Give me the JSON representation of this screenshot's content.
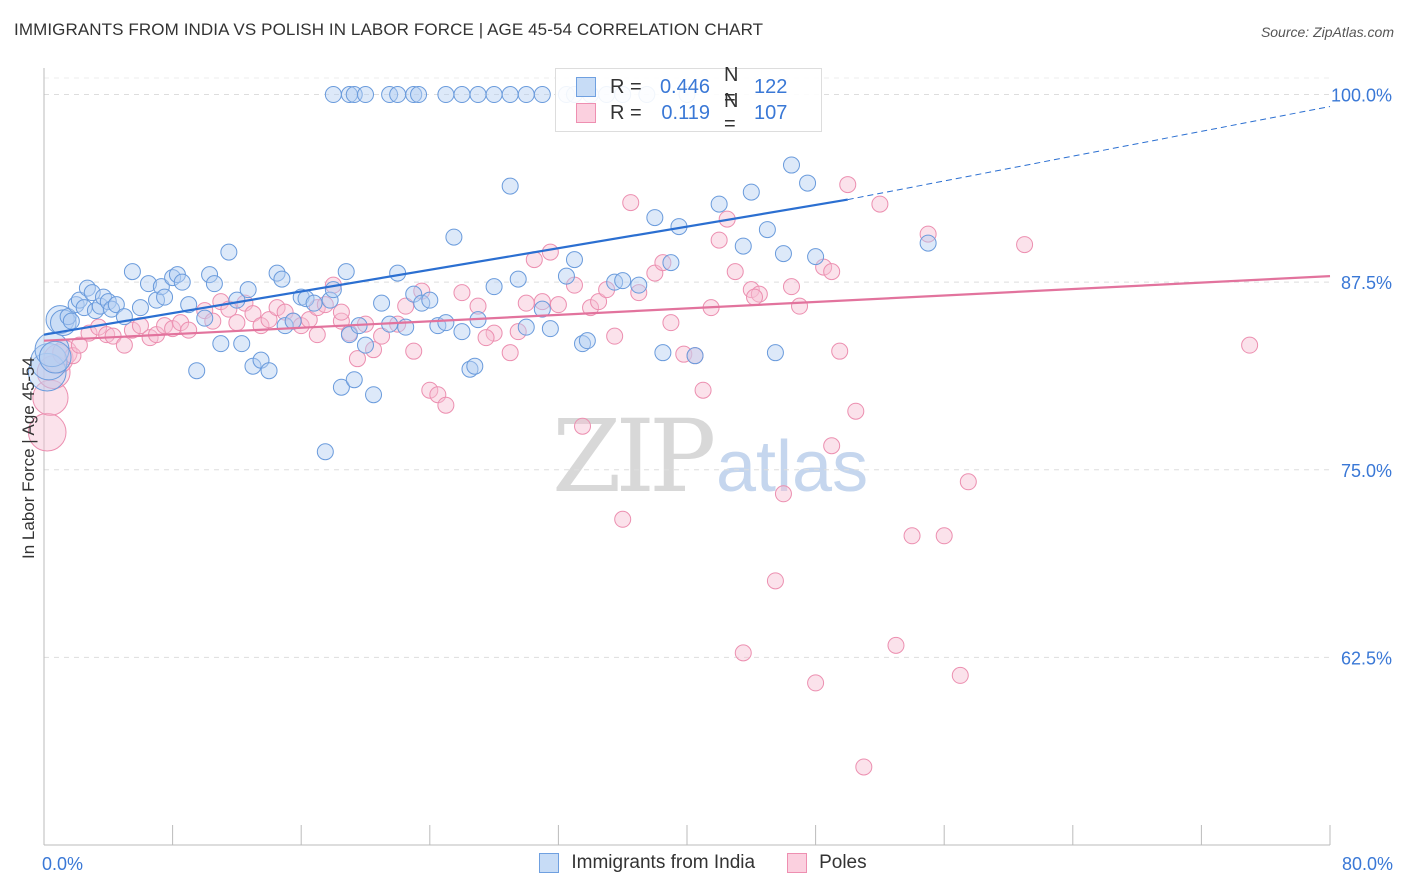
{
  "header": {
    "title": "IMMIGRANTS FROM INDIA VS POLISH IN LABOR FORCE | AGE 45-54 CORRELATION CHART",
    "source": "Source: ZipAtlas.com"
  },
  "watermark": {
    "zip": "ZIP",
    "atlas": "atlas"
  },
  "legend_top": {
    "rows": [
      {
        "r_label": "R =",
        "r_value": "0.446",
        "n_label": "N =",
        "n_value": "122",
        "color": "#6fa0e0"
      },
      {
        "r_label": "R =",
        "r_value": "0.119",
        "n_label": "N =",
        "n_value": "107",
        "color": "#ee8fb1"
      }
    ]
  },
  "legend_bottom": {
    "items": [
      {
        "label": "Immigrants from India",
        "color": "#6fa0e0"
      },
      {
        "label": "Poles",
        "color": "#ee8fb1"
      }
    ]
  },
  "chart_data": {
    "type": "scatter",
    "title": "IMMIGRANTS FROM INDIA VS POLISH IN LABOR FORCE | AGE 45-54 CORRELATION CHART",
    "xlabel": "",
    "ylabel": "In Labor Force | Age 45-54",
    "xlim": [
      0,
      80
    ],
    "ylim": [
      50,
      101.5
    ],
    "x_tick_labels": [
      "0.0%",
      "80.0%"
    ],
    "y_ticks": [
      62.5,
      75.0,
      87.5,
      100.0
    ],
    "y_tick_labels": [
      "62.5%",
      "75.0%",
      "87.5%",
      "100.0%"
    ],
    "grid": "horizontal dashed",
    "series": [
      {
        "name": "Immigrants from India",
        "color": "#6fa0e0",
        "trend": {
          "x": [
            0,
            50
          ],
          "y": [
            84.0,
            93.0
          ],
          "dashed_to_x": 80,
          "dashed_y": 99.2
        },
        "points": [
          [
            0.2,
            81.5
          ],
          [
            0.3,
            82.2
          ],
          [
            0.5,
            83.0
          ],
          [
            0.7,
            82.5
          ],
          [
            1.0,
            85.0
          ],
          [
            1.2,
            84.8
          ],
          [
            1.5,
            85.2
          ],
          [
            1.7,
            84.9
          ],
          [
            2.0,
            86.0
          ],
          [
            2.2,
            86.3
          ],
          [
            2.5,
            85.8
          ],
          [
            2.7,
            87.1
          ],
          [
            3.0,
            86.8
          ],
          [
            3.2,
            85.6
          ],
          [
            3.5,
            85.9
          ],
          [
            3.7,
            86.5
          ],
          [
            4.0,
            86.2
          ],
          [
            4.2,
            85.7
          ],
          [
            4.5,
            86.0
          ],
          [
            5.0,
            85.2
          ],
          [
            5.5,
            88.2
          ],
          [
            6.0,
            85.8
          ],
          [
            6.5,
            87.4
          ],
          [
            7.0,
            86.3
          ],
          [
            7.3,
            87.2
          ],
          [
            7.5,
            86.5
          ],
          [
            8.0,
            87.8
          ],
          [
            8.3,
            88.0
          ],
          [
            8.6,
            87.5
          ],
          [
            9.0,
            86.0
          ],
          [
            9.5,
            81.6
          ],
          [
            10.0,
            85.1
          ],
          [
            10.3,
            88.0
          ],
          [
            10.6,
            87.4
          ],
          [
            11.0,
            83.4
          ],
          [
            11.5,
            89.5
          ],
          [
            12.0,
            86.3
          ],
          [
            12.3,
            83.4
          ],
          [
            12.7,
            87.0
          ],
          [
            13.0,
            81.9
          ],
          [
            13.5,
            82.3
          ],
          [
            14.0,
            81.6
          ],
          [
            14.5,
            88.1
          ],
          [
            14.8,
            87.7
          ],
          [
            15.0,
            84.6
          ],
          [
            15.5,
            84.9
          ],
          [
            16.0,
            86.5
          ],
          [
            16.3,
            86.4
          ],
          [
            16.8,
            86.1
          ],
          [
            17.5,
            76.2
          ],
          [
            17.8,
            86.3
          ],
          [
            18.0,
            87.0
          ],
          [
            18.5,
            80.5
          ],
          [
            18.8,
            88.2
          ],
          [
            19.0,
            84.0
          ],
          [
            19.3,
            81.0
          ],
          [
            19.6,
            84.6
          ],
          [
            20.0,
            83.3
          ],
          [
            20.5,
            80.0
          ],
          [
            21.0,
            86.1
          ],
          [
            21.5,
            84.7
          ],
          [
            22.0,
            88.1
          ],
          [
            22.5,
            84.5
          ],
          [
            23.0,
            86.7
          ],
          [
            23.5,
            86.1
          ],
          [
            24.0,
            86.3
          ],
          [
            24.5,
            84.6
          ],
          [
            25.0,
            84.8
          ],
          [
            25.5,
            90.5
          ],
          [
            26.0,
            84.2
          ],
          [
            26.5,
            81.7
          ],
          [
            26.8,
            81.9
          ],
          [
            27.0,
            85.0
          ],
          [
            28.0,
            87.2
          ],
          [
            29.0,
            93.9
          ],
          [
            29.5,
            87.7
          ],
          [
            30.0,
            84.5
          ],
          [
            31.0,
            85.7
          ],
          [
            31.5,
            84.4
          ],
          [
            32.5,
            87.9
          ],
          [
            33.0,
            89.0
          ],
          [
            33.5,
            83.4
          ],
          [
            33.8,
            83.6
          ],
          [
            35.5,
            87.5
          ],
          [
            36.0,
            87.6
          ],
          [
            37.0,
            87.3
          ],
          [
            38.0,
            91.8
          ],
          [
            38.5,
            82.8
          ],
          [
            39.0,
            88.8
          ],
          [
            39.5,
            91.2
          ],
          [
            40.0,
            100.0
          ],
          [
            40.5,
            82.6
          ],
          [
            42.0,
            92.7
          ],
          [
            43.5,
            89.9
          ],
          [
            44.0,
            93.5
          ],
          [
            45.0,
            91.0
          ],
          [
            45.5,
            82.8
          ],
          [
            46.0,
            89.4
          ],
          [
            46.5,
            95.3
          ],
          [
            47.5,
            94.1
          ],
          [
            48.0,
            89.2
          ],
          [
            55.0,
            90.1
          ],
          [
            18.0,
            100.0
          ],
          [
            19.0,
            100.0
          ],
          [
            19.3,
            100.0
          ],
          [
            20.0,
            100.0
          ],
          [
            21.5,
            100.0
          ],
          [
            22.0,
            100.0
          ],
          [
            23.0,
            100.0
          ],
          [
            23.3,
            100.0
          ],
          [
            25.0,
            100.0
          ],
          [
            26.0,
            100.0
          ],
          [
            27.0,
            100.0
          ],
          [
            28.0,
            100.0
          ],
          [
            29.0,
            100.0
          ],
          [
            30.0,
            100.0
          ],
          [
            31.0,
            100.0
          ],
          [
            32.5,
            100.0
          ],
          [
            33.0,
            100.0
          ],
          [
            34.0,
            100.0
          ],
          [
            35.0,
            100.0
          ],
          [
            36.0,
            100.0
          ],
          [
            37.5,
            100.0
          ]
        ]
      },
      {
        "name": "Poles",
        "color": "#ee8fb1",
        "trend": {
          "x": [
            0,
            80
          ],
          "y": [
            83.6,
            87.9
          ]
        },
        "points": [
          [
            0.2,
            77.5
          ],
          [
            0.4,
            79.8
          ],
          [
            0.6,
            81.5
          ],
          [
            0.9,
            82.4
          ],
          [
            1.3,
            82.8
          ],
          [
            1.8,
            82.6
          ],
          [
            2.2,
            83.3
          ],
          [
            2.8,
            84.1
          ],
          [
            3.4,
            84.5
          ],
          [
            3.9,
            84.0
          ],
          [
            4.3,
            83.9
          ],
          [
            5.0,
            83.3
          ],
          [
            5.5,
            84.3
          ],
          [
            6.0,
            84.6
          ],
          [
            6.6,
            83.8
          ],
          [
            7.0,
            84.0
          ],
          [
            7.5,
            84.6
          ],
          [
            8.0,
            84.4
          ],
          [
            8.5,
            84.8
          ],
          [
            9.0,
            84.3
          ],
          [
            10.0,
            85.6
          ],
          [
            10.5,
            84.9
          ],
          [
            11.0,
            86.2
          ],
          [
            11.5,
            85.7
          ],
          [
            12.0,
            84.8
          ],
          [
            12.5,
            86.1
          ],
          [
            13.0,
            85.4
          ],
          [
            13.5,
            84.6
          ],
          [
            14.0,
            85.0
          ],
          [
            14.5,
            85.8
          ],
          [
            15.0,
            85.5
          ],
          [
            15.5,
            84.9
          ],
          [
            16.0,
            84.6
          ],
          [
            16.5,
            85.0
          ],
          [
            17.0,
            85.8
          ],
          [
            17.5,
            86.0
          ],
          [
            18.0,
            87.3
          ],
          [
            18.5,
            84.9
          ],
          [
            19.0,
            84.1
          ],
          [
            19.5,
            82.4
          ],
          [
            20.0,
            84.7
          ],
          [
            20.5,
            83.0
          ],
          [
            21.0,
            83.9
          ],
          [
            22.0,
            84.7
          ],
          [
            22.5,
            85.9
          ],
          [
            23.0,
            82.9
          ],
          [
            23.5,
            86.9
          ],
          [
            24.0,
            80.3
          ],
          [
            24.5,
            80.0
          ],
          [
            25.0,
            79.3
          ],
          [
            26.0,
            86.8
          ],
          [
            27.0,
            85.9
          ],
          [
            28.0,
            84.1
          ],
          [
            29.0,
            82.8
          ],
          [
            29.5,
            84.2
          ],
          [
            30.0,
            86.1
          ],
          [
            30.5,
            89.0
          ],
          [
            31.0,
            86.2
          ],
          [
            31.5,
            89.5
          ],
          [
            32.0,
            86.0
          ],
          [
            33.0,
            87.3
          ],
          [
            33.5,
            77.9
          ],
          [
            34.0,
            85.8
          ],
          [
            34.5,
            86.2
          ],
          [
            35.0,
            87.0
          ],
          [
            35.5,
            83.9
          ],
          [
            36.0,
            71.7
          ],
          [
            37.0,
            86.8
          ],
          [
            38.0,
            88.1
          ],
          [
            38.5,
            88.8
          ],
          [
            39.0,
            84.8
          ],
          [
            39.8,
            82.7
          ],
          [
            40.5,
            82.6
          ],
          [
            41.0,
            80.3
          ],
          [
            41.5,
            85.8
          ],
          [
            42.0,
            90.3
          ],
          [
            42.5,
            91.7
          ],
          [
            43.0,
            88.2
          ],
          [
            43.5,
            62.8
          ],
          [
            44.0,
            87.0
          ],
          [
            44.5,
            86.7
          ],
          [
            45.5,
            67.6
          ],
          [
            46.0,
            73.4
          ],
          [
            46.5,
            87.2
          ],
          [
            47.0,
            85.9
          ],
          [
            48.0,
            60.8
          ],
          [
            48.5,
            88.5
          ],
          [
            49.0,
            76.6
          ],
          [
            49.5,
            82.9
          ],
          [
            50.0,
            94.0
          ],
          [
            50.5,
            78.9
          ],
          [
            51.0,
            55.2
          ],
          [
            52.0,
            92.7
          ],
          [
            53.0,
            63.3
          ],
          [
            54.0,
            70.6
          ],
          [
            55.0,
            90.7
          ],
          [
            56.0,
            70.6
          ],
          [
            57.0,
            61.3
          ],
          [
            57.5,
            74.2
          ],
          [
            61.0,
            90.0
          ],
          [
            75.0,
            83.3
          ],
          [
            17.0,
            84.0
          ],
          [
            18.5,
            85.5
          ],
          [
            27.5,
            83.8
          ],
          [
            44.2,
            86.5
          ],
          [
            49.0,
            88.2
          ],
          [
            36.5,
            92.8
          ]
        ]
      }
    ]
  }
}
